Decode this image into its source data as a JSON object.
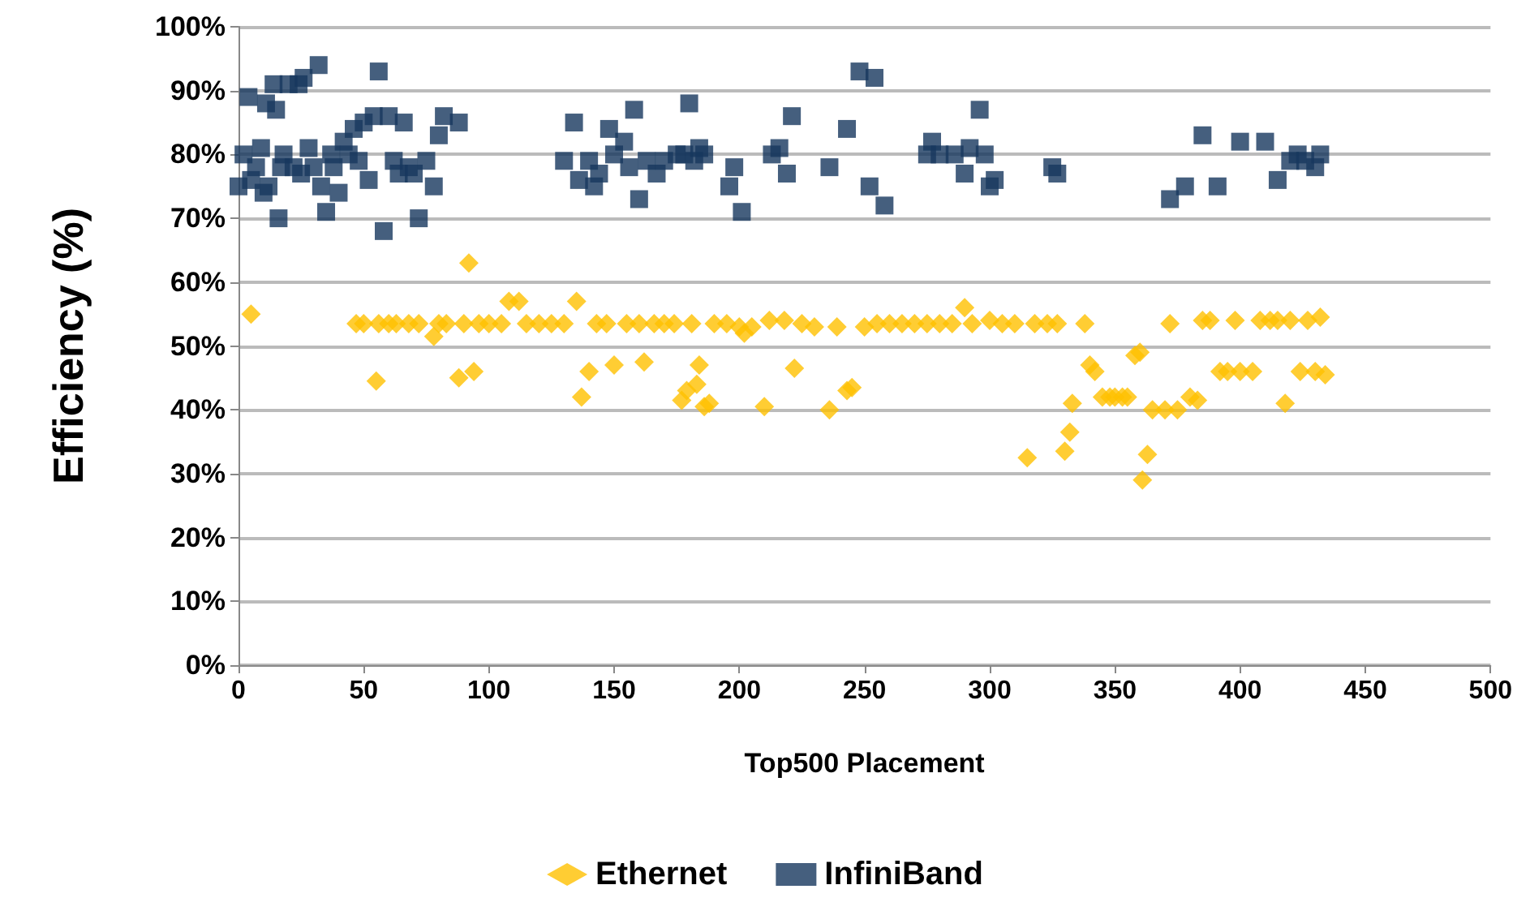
{
  "chart_data": {
    "type": "scatter",
    "xlabel": "Top500 Placement",
    "ylabel": "Efficiency (%)",
    "xlim": [
      0,
      500
    ],
    "xticks": [
      0,
      50,
      100,
      150,
      200,
      250,
      300,
      350,
      400,
      450,
      500
    ],
    "ylim": [
      0,
      100
    ],
    "yticks": [
      {
        "value": 0,
        "label": "0%"
      },
      {
        "value": 10,
        "label": "10%"
      },
      {
        "value": 20,
        "label": "20%"
      },
      {
        "value": 30,
        "label": "30%"
      },
      {
        "value": 40,
        "label": "40%"
      },
      {
        "value": 50,
        "label": "50%"
      },
      {
        "value": 60,
        "label": "60%"
      },
      {
        "value": 70,
        "label": "70%"
      },
      {
        "value": 80,
        "label": "80%"
      },
      {
        "value": 90,
        "label": "90%"
      },
      {
        "value": 100,
        "label": "100%"
      }
    ],
    "grid": "y",
    "legend": "bottom",
    "series": [
      {
        "name": "Ethernet",
        "color": "#ffc000",
        "marker": "diamond",
        "x": [
          5,
          47,
          50,
          55,
          56,
          60,
          63,
          68,
          72,
          78,
          80,
          83,
          88,
          90,
          92,
          94,
          96,
          100,
          105,
          108,
          112,
          115,
          120,
          125,
          130,
          135,
          137,
          140,
          143,
          147,
          150,
          155,
          160,
          162,
          166,
          170,
          174,
          177,
          179,
          181,
          183,
          184,
          186,
          188,
          190,
          195,
          200,
          202,
          205,
          210,
          212,
          218,
          222,
          225,
          230,
          236,
          239,
          243,
          245,
          250,
          255,
          260,
          265,
          270,
          275,
          280,
          285,
          290,
          293,
          300,
          305,
          310,
          315,
          318,
          323,
          327,
          330,
          332,
          333,
          338,
          340,
          342,
          345,
          348,
          350,
          353,
          355,
          358,
          360,
          361,
          363,
          365,
          370,
          372,
          375,
          380,
          383,
          385,
          388,
          392,
          395,
          398,
          400,
          405,
          408,
          412,
          415,
          418,
          420,
          424,
          427,
          430,
          432,
          434
        ],
        "values": [
          55,
          53.5,
          53.5,
          44.5,
          53.5,
          53.5,
          53.5,
          53.5,
          53.5,
          51.5,
          53.5,
          53.5,
          45,
          53.5,
          63,
          46,
          53.5,
          53.5,
          53.5,
          57,
          57,
          53.5,
          53.5,
          53.5,
          53.5,
          57,
          42,
          46,
          53.5,
          53.5,
          47,
          53.5,
          53.5,
          47.5,
          53.5,
          53.5,
          53.5,
          41.5,
          43,
          53.5,
          44,
          47,
          40.5,
          41,
          53.5,
          53.5,
          53,
          52,
          53,
          40.5,
          54,
          54,
          46.5,
          53.5,
          53,
          40,
          53,
          43,
          43.5,
          53,
          53.5,
          53.5,
          53.5,
          53.5,
          53.5,
          53.5,
          53.5,
          56,
          53.5,
          54,
          53.5,
          53.5,
          32.5,
          53.5,
          53.5,
          53.5,
          33.5,
          36.5,
          41,
          53.5,
          47,
          46,
          42,
          42,
          42,
          42,
          42,
          48.5,
          49,
          29,
          33,
          40,
          40,
          53.5,
          40,
          42,
          41.5,
          54,
          54,
          46,
          46,
          54,
          46,
          46,
          54,
          54,
          54,
          41,
          54,
          46,
          54,
          46,
          54.5,
          45.5
        ]
      },
      {
        "name": "InfiniBand",
        "color": "#17375e",
        "marker": "square",
        "x": [
          0,
          2,
          4,
          5,
          7,
          9,
          10,
          11,
          12,
          14,
          15,
          16,
          17,
          18,
          20,
          22,
          24,
          25,
          26,
          28,
          30,
          32,
          33,
          35,
          37,
          38,
          40,
          42,
          44,
          46,
          48,
          50,
          52,
          54,
          56,
          58,
          60,
          62,
          64,
          66,
          68,
          70,
          72,
          75,
          78,
          80,
          82,
          88,
          130,
          134,
          136,
          140,
          142,
          144,
          148,
          150,
          154,
          156,
          158,
          160,
          163,
          167,
          170,
          175,
          178,
          180,
          182,
          184,
          186,
          196,
          198,
          201,
          213,
          216,
          219,
          221,
          236,
          243,
          248,
          252,
          254,
          258,
          275,
          277,
          280,
          286,
          290,
          292,
          296,
          298,
          300,
          302,
          325,
          327,
          372,
          378,
          385,
          391,
          400,
          410,
          415,
          420,
          423,
          426,
          430,
          432
        ],
        "values": [
          75,
          80,
          89,
          76,
          78,
          81,
          74,
          88,
          75,
          91,
          87,
          70,
          78,
          80,
          91,
          78,
          91,
          77,
          92,
          81,
          78,
          94,
          75,
          71,
          80,
          78,
          74,
          82,
          80,
          84,
          79,
          85,
          76,
          86,
          93,
          68,
          86,
          79,
          77,
          85,
          78,
          77,
          70,
          79,
          75,
          83,
          86,
          85,
          79,
          85,
          76,
          79,
          75,
          77,
          84,
          80,
          82,
          78,
          87,
          73,
          79,
          77,
          79,
          80,
          80,
          88,
          79,
          81,
          80,
          75,
          78,
          71,
          80,
          81,
          77,
          86,
          78,
          84,
          93,
          75,
          92,
          72,
          80,
          82,
          80,
          80,
          77,
          81,
          87,
          80,
          75,
          76,
          78,
          77,
          73,
          75,
          83,
          75,
          82,
          82,
          76,
          79,
          80,
          79,
          78,
          80
        ]
      }
    ]
  }
}
